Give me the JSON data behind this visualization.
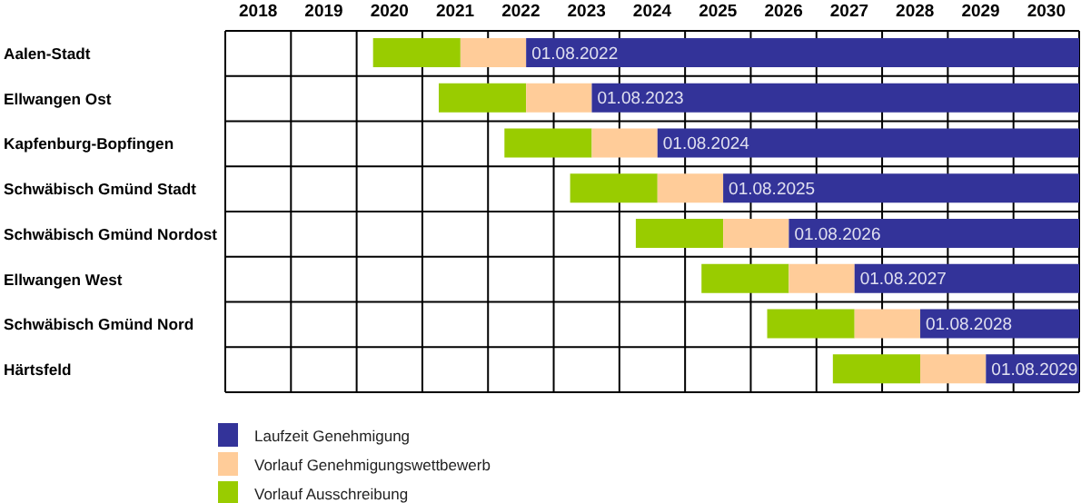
{
  "chart_data": {
    "type": "bar",
    "orientation": "horizontal",
    "categories": [
      "Aalen-Stadt",
      "Ellwangen Ost",
      "Kapfenburg-Bopfingen",
      "Schwäbisch Gmünd Stadt",
      "Schwäbisch Gmünd Nordost",
      "Ellwangen West",
      "Schwäbisch Gmünd Nord",
      "Härtsfeld"
    ],
    "series": [
      {
        "name": "Vorlauf Ausschreibung",
        "color": "#99cc00",
        "base": [
          2019.75,
          2020.75,
          2021.75,
          2022.75,
          2023.75,
          2024.75,
          2025.75,
          2026.75
        ],
        "values": [
          1.33,
          1.33,
          1.33,
          1.33,
          1.33,
          1.33,
          1.33,
          1.33
        ]
      },
      {
        "name": "Vorlauf Genehmigungswettbewerb",
        "color": "#ffcc99",
        "base": [
          2021.08,
          2022.08,
          2023.08,
          2024.08,
          2025.08,
          2026.08,
          2027.08,
          2028.08
        ],
        "values": [
          1,
          1,
          1,
          1,
          1,
          1,
          1,
          1
        ]
      },
      {
        "name": "Laufzeit Genehmigung",
        "color": "#333399",
        "base": [
          2022.08,
          2023.08,
          2024.08,
          2025.08,
          2026.08,
          2027.08,
          2028.08,
          2029.08
        ],
        "values": [
          8.42,
          7.42,
          6.42,
          5.42,
          4.42,
          3.42,
          2.42,
          1.42
        ],
        "value_labels": [
          "01.08.2022",
          "01.08.2023",
          "01.08.2024",
          "01.08.2025",
          "01.08.2026",
          "01.08.2027",
          "01.08.2028",
          "01.08.2029"
        ]
      }
    ],
    "xlim": [
      2017.5,
      2030.5
    ],
    "xticks": [
      {
        "value": 2017.5,
        "label": null
      },
      2018,
      {
        "value": 2018.5,
        "label": null
      },
      2019,
      {
        "value": 2019.5,
        "label": null
      },
      2020,
      {
        "value": 2020.5,
        "label": null
      },
      2021,
      {
        "value": 2021.5,
        "label": null
      },
      2022,
      {
        "value": 2022.5,
        "label": null
      },
      2023,
      {
        "value": 2023.5,
        "label": null
      },
      2024,
      {
        "value": 2024.5,
        "label": null
      },
      2025,
      {
        "value": 2025.5,
        "label": null
      },
      2026,
      {
        "value": 2026.5,
        "label": null
      },
      2027,
      {
        "value": 2027.5,
        "label": null
      },
      2028,
      {
        "value": 2028.5,
        "label": null
      },
      2029,
      {
        "value": 2029.5,
        "label": null
      },
      2030,
      {
        "value": 2030.5,
        "label": null
      }
    ],
    "grid": true,
    "legend": "bottom"
  }
}
